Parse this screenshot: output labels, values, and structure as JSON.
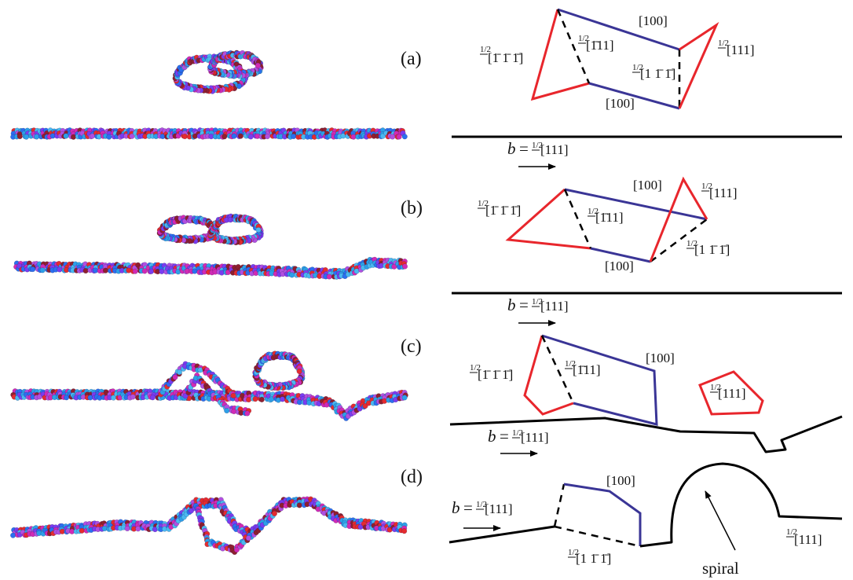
{
  "panels": [
    {
      "letter": "(a)"
    },
    {
      "letter": "(b)"
    },
    {
      "letter": "(c)"
    },
    {
      "letter": "(d)"
    }
  ],
  "labels": {
    "half": "1/2",
    "b_var": "b",
    "equals": "=",
    "m111_all": "[1̄ 1̄ 1̄]",
    "m111_first": "[1̄11]",
    "m111_last": "[1 1̄ 1̄]",
    "p111": "[111]",
    "p100": "[100]",
    "spiral": "spiral"
  },
  "colors": {
    "red_loop": "#e8262c",
    "blue_segment": "#3a3596",
    "line": "#000000",
    "atoms": [
      "#e52b2f",
      "#2d9fe8",
      "#7a3cf0",
      "#b14fe0",
      "#2b6ff0",
      "#d12ab5",
      "#4ab8f0",
      "#8f1f2f"
    ]
  }
}
